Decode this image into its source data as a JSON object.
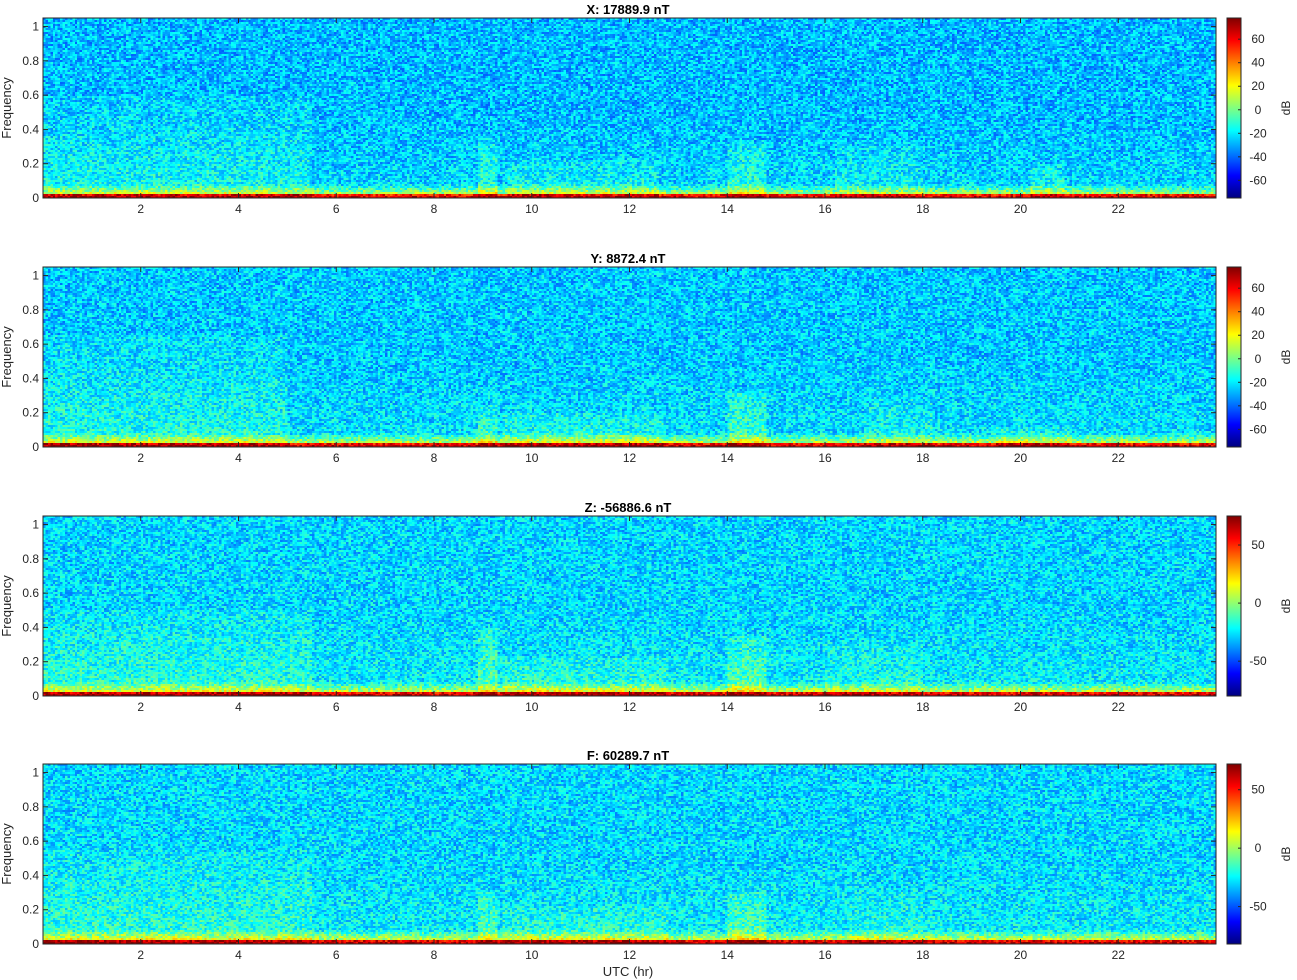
{
  "chart_data": [
    {
      "type": "heatmap",
      "title": "X: 17889.9 nT",
      "xlabel": "",
      "ylabel": "Frequency",
      "xlim": [
        0,
        24
      ],
      "ylim": [
        0,
        1.05
      ],
      "x_ticks": [
        "2",
        "4",
        "6",
        "8",
        "10",
        "12",
        "14",
        "16",
        "18",
        "20",
        "22"
      ],
      "y_ticks": [
        "0",
        "0.2",
        "0.4",
        "0.6",
        "0.8",
        "1"
      ],
      "colorbar": {
        "label": "dB",
        "range": [
          -75,
          78
        ],
        "ticks": [
          "60",
          "40",
          "20",
          "0",
          "-20",
          "-40",
          "-60"
        ],
        "tick_values": [
          60,
          40,
          20,
          0,
          -20,
          -40,
          -60
        ]
      },
      "background_db": -28,
      "features": [
        {
          "t0": 0.0,
          "t1": 5.5,
          "fmax": 0.6,
          "db": 8
        },
        {
          "t0": 8.9,
          "t1": 9.3,
          "fmax": 0.35,
          "db": 14
        },
        {
          "t0": 9.5,
          "t1": 12.6,
          "fmax": 0.22,
          "db": 8
        },
        {
          "t0": 14.0,
          "t1": 14.8,
          "fmax": 0.32,
          "db": 14
        },
        {
          "t0": 16.2,
          "t1": 18.0,
          "fmax": 0.3,
          "db": 6
        },
        {
          "t0": 20.2,
          "t1": 20.9,
          "fmax": 0.2,
          "db": 10
        }
      ]
    },
    {
      "type": "heatmap",
      "title": "Y: 8872.4 nT",
      "xlabel": "",
      "ylabel": "Frequency",
      "xlim": [
        0,
        24
      ],
      "ylim": [
        0,
        1.05
      ],
      "x_ticks": [
        "2",
        "4",
        "6",
        "8",
        "10",
        "12",
        "14",
        "16",
        "18",
        "20",
        "22"
      ],
      "y_ticks": [
        "0",
        "0.2",
        "0.4",
        "0.6",
        "0.8",
        "1"
      ],
      "colorbar": {
        "label": "dB",
        "range": [
          -75,
          78
        ],
        "ticks": [
          "60",
          "40",
          "20",
          "0",
          "-20",
          "-40",
          "-60"
        ],
        "tick_values": [
          60,
          40,
          20,
          0,
          -20,
          -40,
          -60
        ]
      },
      "background_db": -26,
      "features": [
        {
          "t0": 0.0,
          "t1": 5.0,
          "fmax": 0.65,
          "db": 8
        },
        {
          "t0": 8.9,
          "t1": 9.3,
          "fmax": 0.25,
          "db": 14
        },
        {
          "t0": 9.4,
          "t1": 12.7,
          "fmax": 0.2,
          "db": 10
        },
        {
          "t0": 14.0,
          "t1": 14.8,
          "fmax": 0.33,
          "db": 14
        },
        {
          "t0": 16.8,
          "t1": 18.2,
          "fmax": 0.3,
          "db": 6
        },
        {
          "t0": 19.5,
          "t1": 21.0,
          "fmax": 0.12,
          "db": 10
        }
      ]
    },
    {
      "type": "heatmap",
      "title": "Z: -56886.6 nT",
      "xlabel": "",
      "ylabel": "Frequency",
      "xlim": [
        0,
        24
      ],
      "ylim": [
        0,
        1.05
      ],
      "x_ticks": [
        "2",
        "4",
        "6",
        "8",
        "10",
        "12",
        "14",
        "16",
        "18",
        "20",
        "22"
      ],
      "y_ticks": [
        "0",
        "0.2",
        "0.4",
        "0.6",
        "0.8",
        "1"
      ],
      "colorbar": {
        "label": "dB",
        "range": [
          -80,
          75
        ],
        "ticks": [
          "50",
          "0",
          "-50"
        ],
        "tick_values": [
          50,
          0,
          -50
        ]
      },
      "background_db": -28,
      "features": [
        {
          "t0": 0.0,
          "t1": 5.5,
          "fmax": 0.5,
          "db": 8
        },
        {
          "t0": 8.9,
          "t1": 9.3,
          "fmax": 0.4,
          "db": 15
        },
        {
          "t0": 9.4,
          "t1": 12.8,
          "fmax": 0.22,
          "db": 9
        },
        {
          "t0": 14.0,
          "t1": 14.8,
          "fmax": 0.35,
          "db": 15
        },
        {
          "t0": 16.0,
          "t1": 18.0,
          "fmax": 0.3,
          "db": 6
        }
      ]
    },
    {
      "type": "heatmap",
      "title": "F: 60289.7 nT",
      "xlabel": "UTC (hr)",
      "ylabel": "Frequency",
      "xlim": [
        0,
        24
      ],
      "ylim": [
        0,
        1.05
      ],
      "x_ticks": [
        "2",
        "4",
        "6",
        "8",
        "10",
        "12",
        "14",
        "16",
        "18",
        "20",
        "22"
      ],
      "y_ticks": [
        "0",
        "0.2",
        "0.4",
        "0.6",
        "0.8",
        "1"
      ],
      "colorbar": {
        "label": "dB",
        "range": [
          -82,
          72
        ],
        "ticks": [
          "50",
          "0",
          "-50"
        ],
        "tick_values": [
          50,
          0,
          -50
        ]
      },
      "background_db": -30,
      "features": [
        {
          "t0": 0.0,
          "t1": 5.5,
          "fmax": 0.55,
          "db": 8
        },
        {
          "t0": 8.9,
          "t1": 9.3,
          "fmax": 0.3,
          "db": 14
        },
        {
          "t0": 9.4,
          "t1": 12.8,
          "fmax": 0.22,
          "db": 8
        },
        {
          "t0": 14.0,
          "t1": 14.8,
          "fmax": 0.3,
          "db": 15
        },
        {
          "t0": 16.5,
          "t1": 18.0,
          "fmax": 0.3,
          "db": 6
        }
      ]
    }
  ]
}
